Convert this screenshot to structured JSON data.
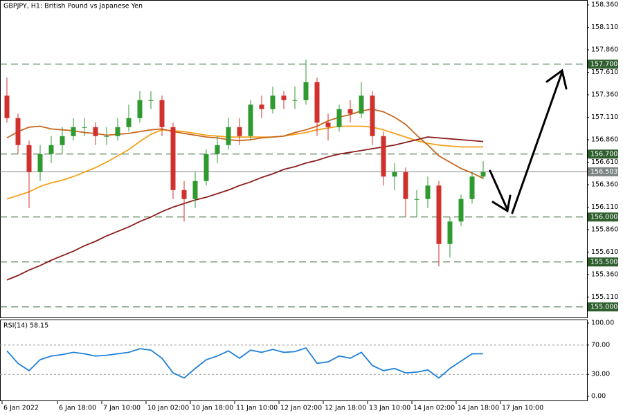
{
  "chart_data": [
    {
      "type": "candlestick",
      "title": "GBPJPY, H1:  British Pound vs Japanese Yen",
      "categories": [
        "6 Jan 2022",
        null,
        null,
        null,
        null,
        "6 Jan 18:00",
        null,
        null,
        null,
        "7 Jan 10:00",
        null,
        null,
        null,
        "10 Jan 02:00",
        null,
        null,
        null,
        "10 Jan 18:00",
        null,
        null,
        null,
        "11 Jan 10:00",
        null,
        null,
        null,
        "12 Jan 02:00",
        null,
        null,
        null,
        "12 Jan 18:00",
        null,
        null,
        null,
        "13 Jan 10:00",
        null,
        null,
        null,
        "14 Jan 02:00",
        null,
        null,
        null,
        "14 Jan 18:00",
        null,
        null,
        null,
        "17 Jan 10:00"
      ],
      "open": [
        157.35,
        157.1,
        156.8,
        156.5,
        156.7,
        156.8,
        156.9,
        157.0,
        157.0,
        156.9,
        156.9,
        157.0,
        157.1,
        157.3,
        157.3,
        157.0,
        156.3,
        156.2,
        156.4,
        156.7,
        156.8,
        157.0,
        156.9,
        157.25,
        157.2,
        157.35,
        157.3,
        157.3,
        157.5,
        157.05,
        157.0,
        157.2,
        157.15,
        157.35,
        156.9,
        156.45,
        156.5,
        156.2,
        156.2,
        156.35,
        155.7,
        155.95,
        156.2,
        156.45,
        null,
        null
      ],
      "high": [
        157.55,
        157.15,
        156.85,
        156.8,
        156.9,
        157.0,
        157.1,
        157.1,
        157.05,
        157.0,
        157.1,
        157.25,
        157.4,
        157.4,
        157.35,
        157.05,
        156.4,
        156.5,
        156.75,
        156.9,
        157.1,
        157.1,
        157.3,
        157.35,
        157.45,
        157.4,
        157.45,
        157.75,
        157.55,
        157.15,
        157.25,
        157.3,
        157.5,
        157.4,
        156.95,
        156.6,
        156.55,
        156.3,
        156.45,
        156.4,
        156.0,
        156.25,
        156.5,
        156.62,
        null,
        null
      ],
      "low": [
        157.05,
        156.7,
        156.1,
        156.4,
        156.6,
        156.7,
        156.85,
        156.9,
        156.8,
        156.8,
        156.85,
        156.95,
        157.05,
        157.2,
        156.9,
        156.2,
        155.95,
        156.1,
        156.35,
        156.6,
        156.75,
        156.8,
        156.85,
        157.1,
        157.15,
        157.2,
        157.2,
        157.25,
        156.9,
        156.85,
        156.95,
        157.05,
        157.1,
        156.8,
        156.35,
        156.3,
        156.0,
        156.0,
        156.1,
        155.45,
        155.55,
        155.9,
        156.15,
        156.42,
        null,
        null
      ],
      "close": [
        157.1,
        156.8,
        156.5,
        156.7,
        156.8,
        156.9,
        157.0,
        157.0,
        156.9,
        156.9,
        157.0,
        157.1,
        157.3,
        157.3,
        157.0,
        156.3,
        156.2,
        156.4,
        156.7,
        156.8,
        157.0,
        156.9,
        157.25,
        157.2,
        157.35,
        157.3,
        157.3,
        157.5,
        157.05,
        157.0,
        157.2,
        157.15,
        157.35,
        156.9,
        156.45,
        156.5,
        156.2,
        156.2,
        156.35,
        155.7,
        155.95,
        156.2,
        156.45,
        156.5,
        null,
        null
      ],
      "up_color": "#2f9a2f",
      "down_color": "#d0312d",
      "series": [
        {
          "color": "#f5a01a",
          "values": [
            156.2,
            156.24,
            156.28,
            156.34,
            156.38,
            156.41,
            156.45,
            156.5,
            156.55,
            156.61,
            156.68,
            156.75,
            156.84,
            156.92,
            156.97,
            156.96,
            156.95,
            156.93,
            156.91,
            156.9,
            156.89,
            156.89,
            156.89,
            156.89,
            156.89,
            156.9,
            156.92,
            156.94,
            156.97,
            156.99,
            157.01,
            157.01,
            157.01,
            157.0,
            156.97,
            156.93,
            156.89,
            156.85,
            156.82,
            156.8,
            156.79,
            156.78,
            156.78,
            156.78,
            null,
            null
          ]
        },
        {
          "color": "#c8661e",
          "values": [
            156.88,
            156.95,
            157.0,
            157.01,
            156.98,
            156.97,
            156.96,
            156.94,
            156.93,
            156.91,
            156.92,
            156.93,
            156.95,
            156.97,
            156.98,
            156.95,
            156.93,
            156.91,
            156.89,
            156.88,
            156.86,
            156.85,
            156.86,
            156.88,
            156.89,
            156.9,
            156.94,
            156.97,
            157.01,
            157.07,
            157.11,
            157.14,
            157.18,
            157.2,
            157.17,
            157.11,
            157.03,
            156.91,
            156.8,
            156.68,
            156.61,
            156.54,
            156.49,
            156.43,
            null,
            null
          ]
        },
        {
          "color": "#8b1c1c",
          "values": [
            155.3,
            155.35,
            155.41,
            155.46,
            155.52,
            155.57,
            155.62,
            155.68,
            155.73,
            155.79,
            155.84,
            155.89,
            155.95,
            156.0,
            156.06,
            156.11,
            156.15,
            156.19,
            156.22,
            156.26,
            156.3,
            156.35,
            156.39,
            156.44,
            156.48,
            156.53,
            156.56,
            156.6,
            156.63,
            156.67,
            156.7,
            156.72,
            156.74,
            156.76,
            156.78,
            156.8,
            156.83,
            156.86,
            156.89,
            156.88,
            156.87,
            156.86,
            156.85,
            156.84,
            null,
            null
          ]
        }
      ],
      "ylim": [
        154.875,
        158.414
      ],
      "yticks": [
        {
          "value": 158.36,
          "label": "158.360"
        },
        {
          "value": 158.11,
          "label": "158.110"
        },
        {
          "value": 157.86,
          "label": "157.860"
        },
        {
          "value": 157.61,
          "label": "157.610"
        },
        {
          "value": 157.36,
          "label": "157.360"
        },
        {
          "value": 157.11,
          "label": "157.110"
        },
        {
          "value": 156.86,
          "label": "156.860"
        },
        {
          "value": 156.61,
          "label": "156.610"
        },
        {
          "value": 156.36,
          "label": "156.360"
        },
        {
          "value": 156.11,
          "label": "156.110"
        },
        {
          "value": 155.86,
          "label": "155.860"
        },
        {
          "value": 155.61,
          "label": "155.610"
        },
        {
          "value": 155.36,
          "label": "155.360"
        },
        {
          "value": 155.11,
          "label": "155.110"
        }
      ],
      "levels": [
        {
          "value": 157.7,
          "label": "157.700"
        },
        {
          "value": 156.7,
          "label": "156.700"
        },
        {
          "value": 156.0,
          "label": "156.000"
        },
        {
          "value": 155.5,
          "label": "155.500"
        },
        {
          "value": 155.0,
          "label": "155.000"
        }
      ],
      "level_color": "#2f5f2f",
      "current": {
        "value": 156.503,
        "label": "156.503"
      },
      "current_color": "#7d8585"
    },
    {
      "type": "line",
      "title": "RSI(14) 58.15",
      "series": [
        {
          "color": "#1e7fd8",
          "values": [
            62,
            45,
            35,
            50,
            55,
            57,
            60,
            58,
            55,
            56,
            58,
            60,
            65,
            63,
            52,
            32,
            25,
            38,
            50,
            55,
            62,
            52,
            63,
            60,
            64,
            60,
            61,
            66,
            45,
            47,
            55,
            52,
            60,
            42,
            35,
            38,
            32,
            33,
            36,
            25,
            38,
            48,
            58,
            58.15,
            null,
            null
          ]
        }
      ],
      "ylim": [
        -6.6,
        103.8
      ],
      "yticks": [
        {
          "value": 100,
          "label": "100.00"
        },
        {
          "value": 70,
          "label": "70.00"
        },
        {
          "value": 30,
          "label": "30.00"
        },
        {
          "value": 0,
          "label": "0.00"
        }
      ],
      "levels": [
        70,
        30
      ]
    }
  ]
}
